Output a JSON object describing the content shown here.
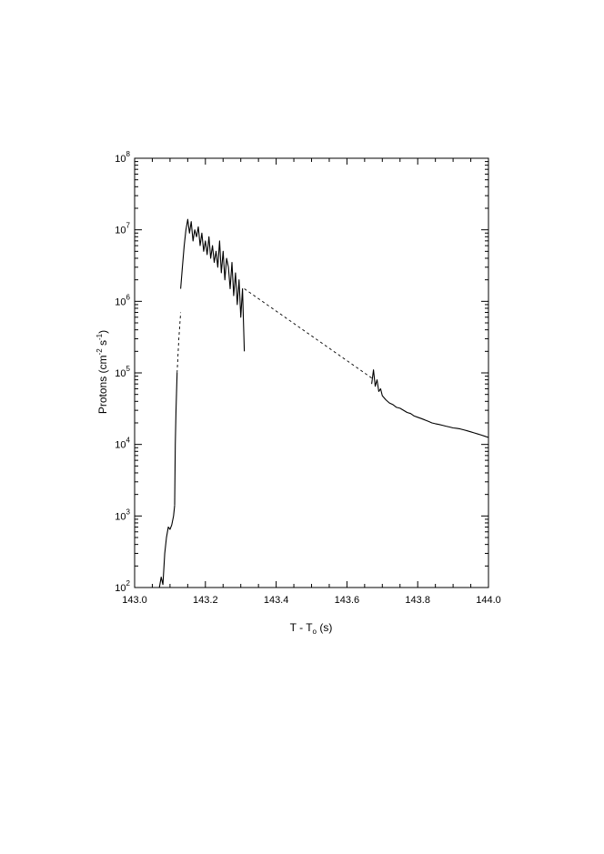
{
  "chart_data": {
    "type": "line",
    "title": "",
    "xlabel": {
      "base": "T - T",
      "sub": "o",
      "unit": " (s)"
    },
    "ylabel": {
      "pre": "Protons (cm",
      "sup1": "-2",
      "mid": " s",
      "sup2": "-1",
      "post": ")"
    },
    "y_scale": "log",
    "grid": false,
    "legend": "none",
    "xlim": [
      143.0,
      144.0
    ],
    "ylim": [
      100,
      100000000
    ],
    "x_ticks": [
      {
        "value": 143.0,
        "label": "143.0"
      },
      {
        "value": 143.2,
        "label": "143.2"
      },
      {
        "value": 143.4,
        "label": "143.4"
      },
      {
        "value": 143.6,
        "label": "143.6"
      },
      {
        "value": 143.8,
        "label": "143.8"
      },
      {
        "value": 144.0,
        "label": "144.0"
      }
    ],
    "y_ticks": [
      {
        "value": 100,
        "base": "10",
        "exp": "2"
      },
      {
        "value": 1000,
        "base": "10",
        "exp": "3"
      },
      {
        "value": 10000,
        "base": "10",
        "exp": "4"
      },
      {
        "value": 100000,
        "base": "10",
        "exp": "5"
      },
      {
        "value": 1000000,
        "base": "10",
        "exp": "6"
      },
      {
        "value": 10000000,
        "base": "10",
        "exp": "7"
      },
      {
        "value": 100000000,
        "base": "10",
        "exp": "8"
      }
    ],
    "series": [
      {
        "style": "solid",
        "x": [
          143.07,
          143.075,
          143.08,
          143.085,
          143.09,
          143.095,
          143.1,
          143.105,
          143.11,
          143.113
        ],
        "y": [
          100,
          140,
          110,
          300,
          500,
          700,
          650,
          750,
          1000,
          1400
        ]
      },
      {
        "style": "solid",
        "x": [
          143.113,
          143.115,
          143.117,
          143.12
        ],
        "y": [
          1400,
          10000,
          30000,
          100000
        ]
      },
      {
        "style": "dashed",
        "x": [
          143.12,
          143.125,
          143.13
        ],
        "y": [
          100000,
          300000,
          700000
        ]
      },
      {
        "style": "solid",
        "x": [
          143.13,
          143.135,
          143.14,
          143.145,
          143.15,
          143.155,
          143.16,
          143.165,
          143.17,
          143.175,
          143.18,
          143.185,
          143.19,
          143.195,
          143.2,
          143.205,
          143.21,
          143.215,
          143.22,
          143.225,
          143.23,
          143.235,
          143.24,
          143.245,
          143.25,
          143.255,
          143.26,
          143.265,
          143.27,
          143.275,
          143.28,
          143.285,
          143.29,
          143.295,
          143.3,
          143.305,
          143.31
        ],
        "y": [
          1500000,
          3000000,
          6000000,
          10000000,
          14000000,
          9000000,
          13000000,
          7000000,
          10000000,
          8000000,
          11000000,
          6000000,
          9000000,
          5000000,
          7000000,
          4500000,
          8000000,
          4000000,
          6000000,
          3500000,
          5000000,
          3000000,
          7000000,
          2500000,
          5000000,
          2000000,
          4000000,
          3000000,
          1500000,
          3500000,
          1200000,
          2500000,
          900000,
          2000000,
          600000,
          1500000,
          200000
        ]
      },
      {
        "style": "dashed",
        "x": [
          143.31,
          143.67
        ],
        "y": [
          1500000,
          85000
        ]
      },
      {
        "style": "solid",
        "x": [
          143.67,
          143.675,
          143.68,
          143.685,
          143.69,
          143.695,
          143.7,
          143.71,
          143.72,
          143.73,
          143.74,
          143.75,
          143.76,
          143.77,
          143.78,
          143.79,
          143.8,
          143.81,
          143.82,
          143.83,
          143.84,
          143.85,
          143.86,
          143.87,
          143.88,
          143.89,
          143.9,
          143.91,
          143.92,
          143.93,
          143.94,
          143.95,
          143.96,
          143.97,
          143.98,
          143.99,
          144.0
        ],
        "y": [
          70000,
          110000,
          65000,
          80000,
          55000,
          60000,
          48000,
          42000,
          38000,
          36000,
          33000,
          32000,
          30000,
          28000,
          27000,
          25000,
          24000,
          23000,
          22000,
          21000,
          20000,
          19500,
          19000,
          18500,
          18000,
          17500,
          17000,
          16800,
          16500,
          16000,
          15500,
          15000,
          14500,
          14000,
          13500,
          13000,
          12500
        ]
      }
    ]
  }
}
